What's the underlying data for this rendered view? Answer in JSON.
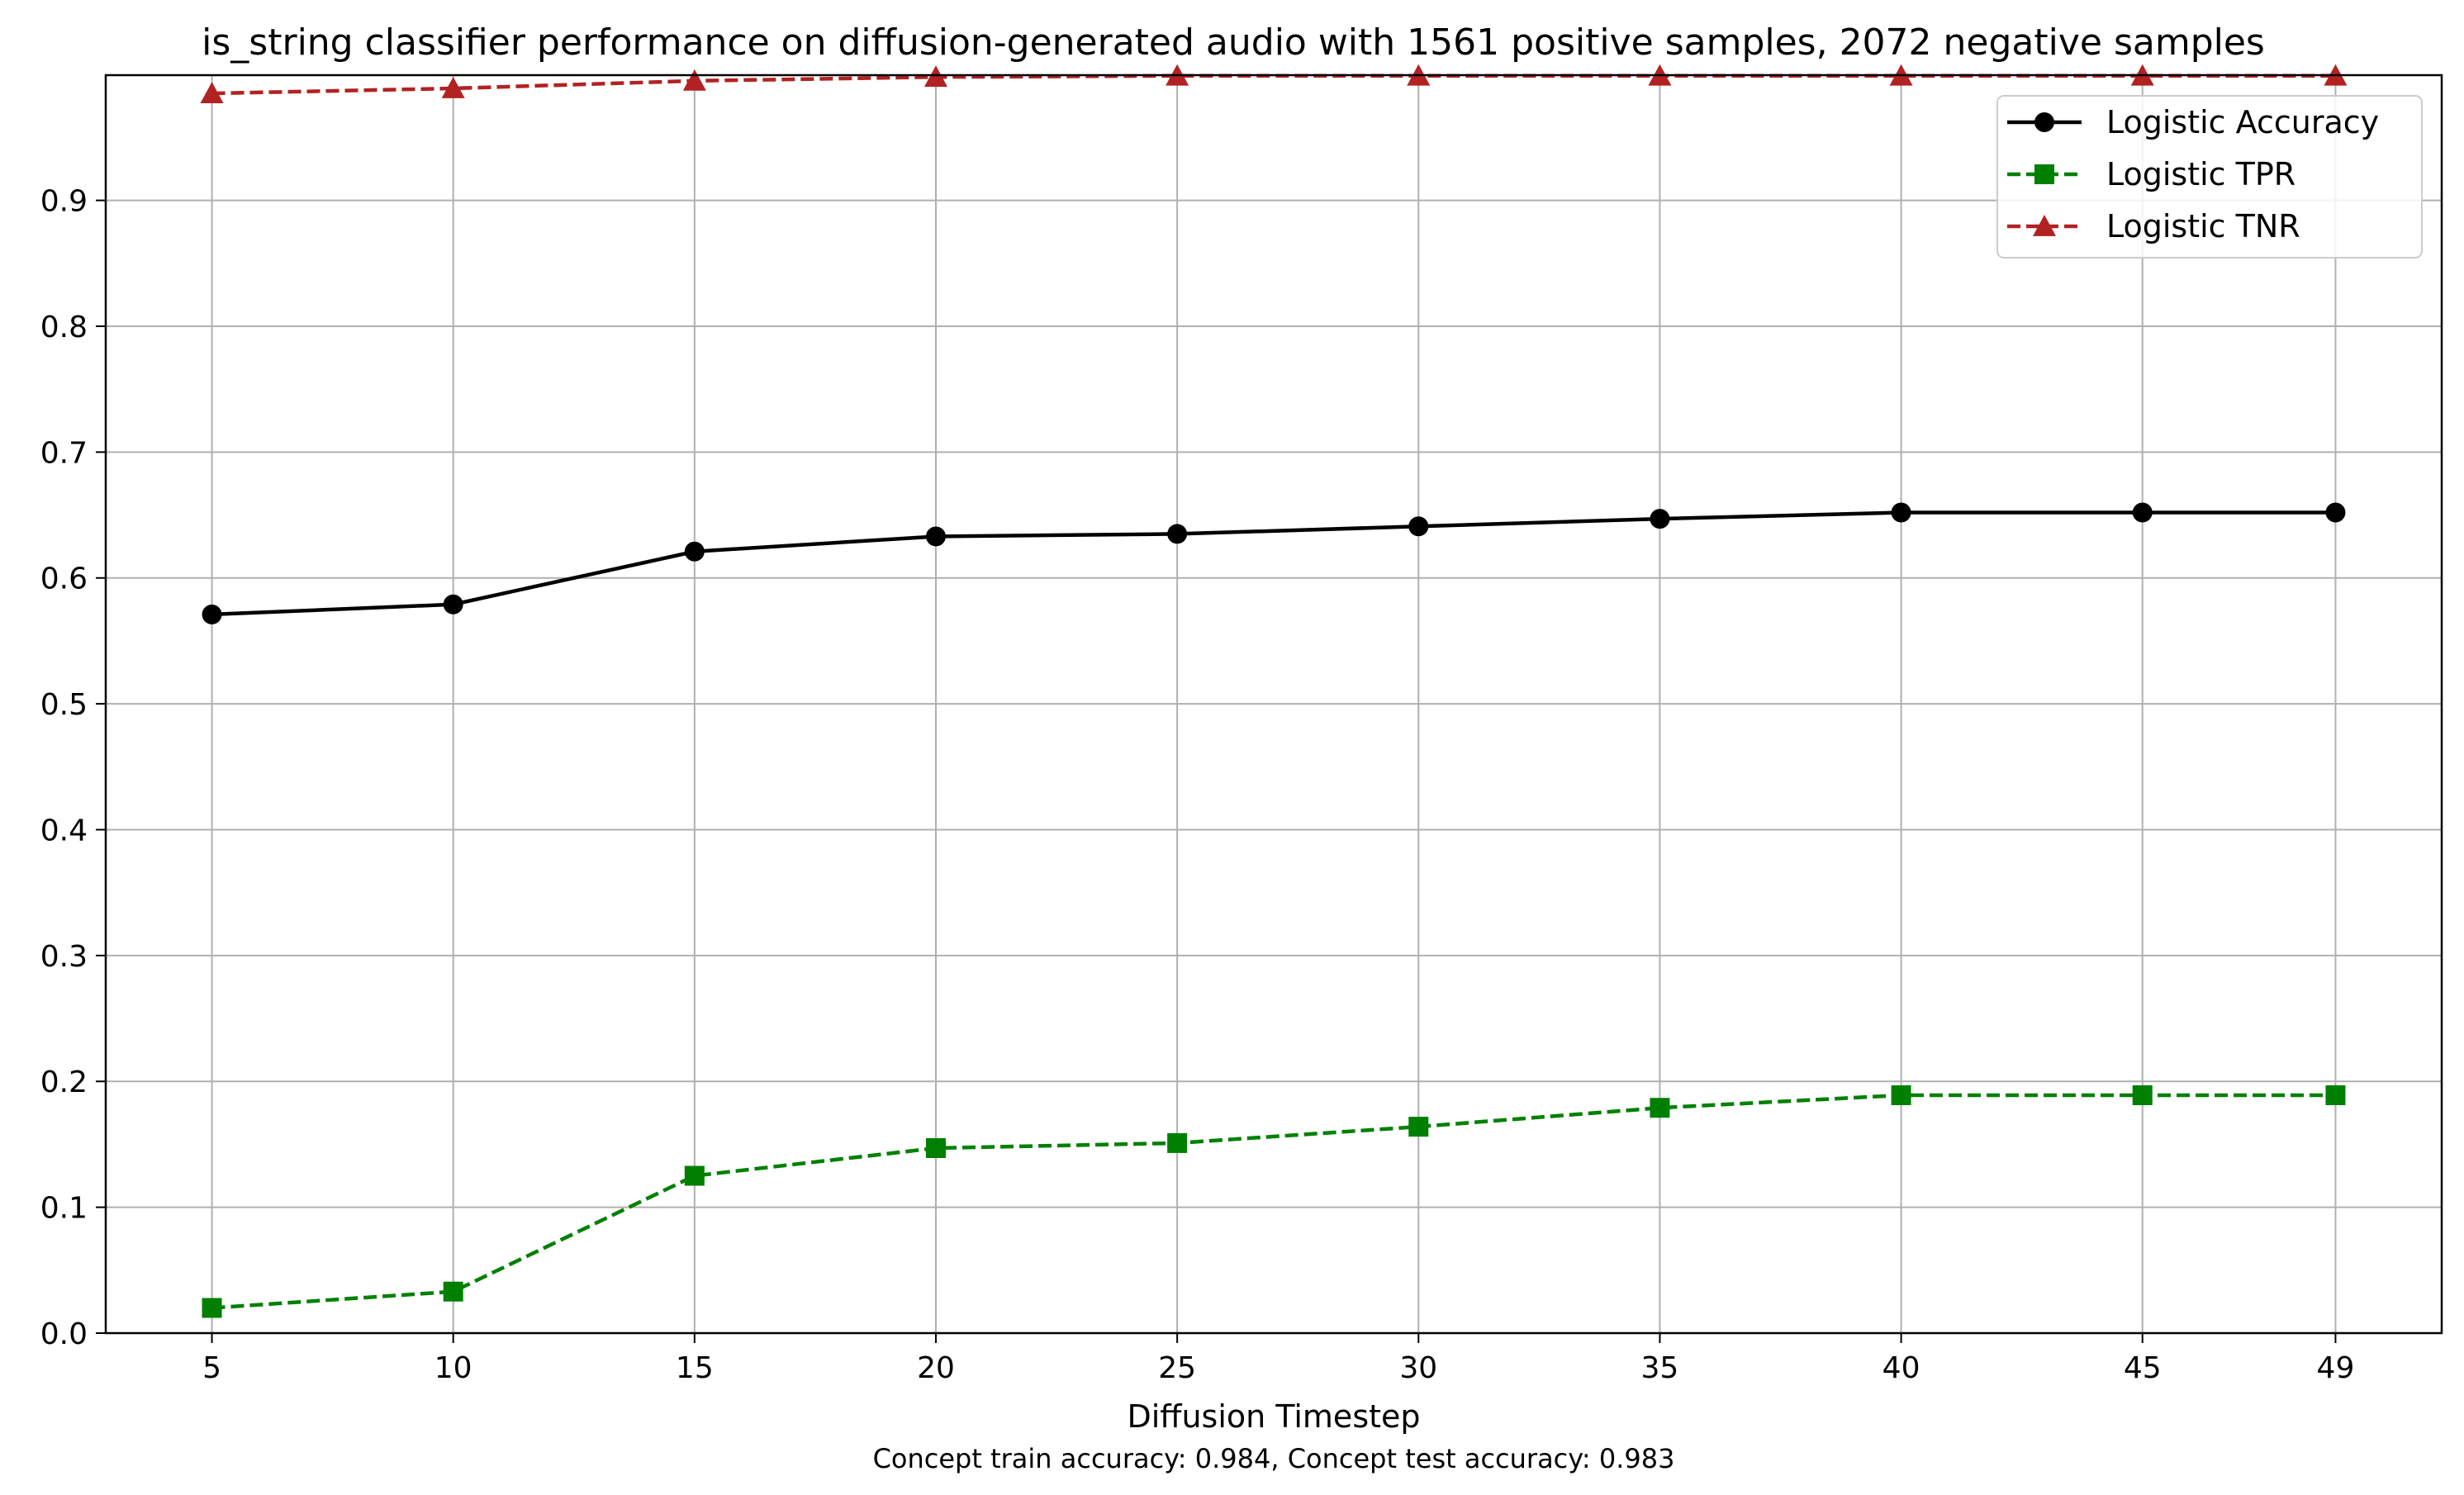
{
  "chart_data": {
    "type": "line",
    "title": "is_string classifier performance on diffusion-generated audio with 1561 positive samples, 2072 negative samples",
    "xlabel": "Diffusion Timestep",
    "ylabel": "",
    "caption": "Concept train accuracy: 0.984, Concept test accuracy: 0.983",
    "x": [
      5,
      10,
      15,
      20,
      25,
      30,
      35,
      40,
      45,
      49
    ],
    "x_ticks": [
      "5",
      "10",
      "15",
      "20",
      "25",
      "30",
      "35",
      "40",
      "45",
      "49"
    ],
    "y_ticks": [
      "0.0",
      "0.1",
      "0.2",
      "0.3",
      "0.4",
      "0.5",
      "0.6",
      "0.7",
      "0.8",
      "0.9"
    ],
    "xlim": [
      2.8,
      51.2
    ],
    "ylim": [
      0.0,
      0.9995
    ],
    "grid": true,
    "legend_position": "top-right",
    "series": [
      {
        "name": "Logistic Accuracy",
        "color": "#000000",
        "line_style": "solid",
        "marker": "circle",
        "values": [
          0.571,
          0.579,
          0.621,
          0.633,
          0.635,
          0.641,
          0.647,
          0.652,
          0.652,
          0.652
        ]
      },
      {
        "name": "Logistic TPR",
        "color": "#008000",
        "line_style": "dashed",
        "marker": "square",
        "values": [
          0.02,
          0.033,
          0.125,
          0.147,
          0.151,
          0.164,
          0.179,
          0.189,
          0.189,
          0.189
        ]
      },
      {
        "name": "Logistic TNR",
        "color": "#b22222",
        "line_style": "dashed",
        "marker": "triangle",
        "values": [
          0.985,
          0.989,
          0.995,
          0.998,
          0.999,
          0.999,
          0.999,
          0.999,
          0.999,
          0.999
        ]
      }
    ]
  }
}
